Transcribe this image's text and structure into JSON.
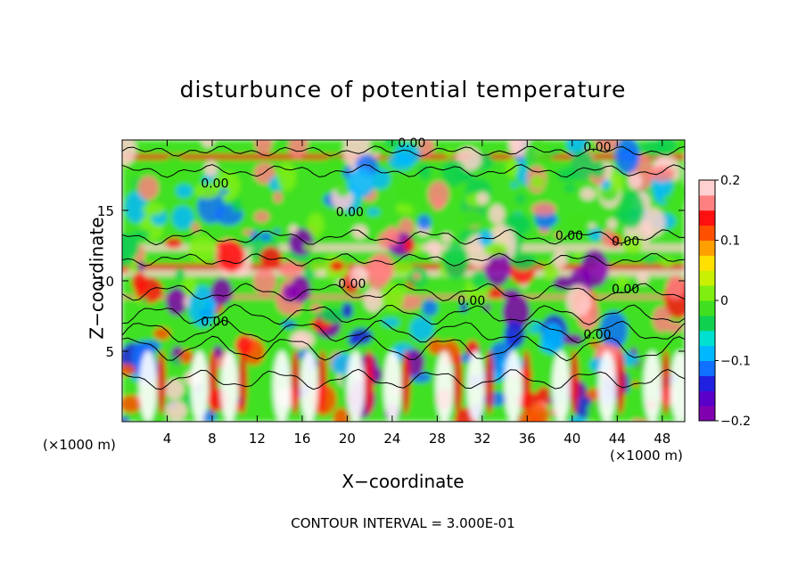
{
  "chart_data": {
    "type": "heatmap",
    "title": "disturbunce of potential temperature",
    "xlabel": "X−coordinate",
    "ylabel": "Z−coordinate",
    "x_unit": "(×1000 m)",
    "z_unit": "(×1000 m)",
    "x_ticks": [
      4,
      8,
      12,
      16,
      20,
      24,
      28,
      32,
      36,
      40,
      44,
      48
    ],
    "y_ticks": [
      5,
      10,
      15
    ],
    "xlim": [
      0,
      50
    ],
    "ylim": [
      0,
      20
    ],
    "colorbar": {
      "ticks": [
        "0.2",
        "0.1",
        "0",
        "−0.1",
        "−0.2"
      ],
      "range": [
        -0.2,
        0.2
      ],
      "colors": [
        "#8000b0",
        "#5a00c8",
        "#2020e0",
        "#1070ff",
        "#00b8ff",
        "#00e0d0",
        "#10d050",
        "#40e020",
        "#80ee10",
        "#c8f000",
        "#ffe000",
        "#ffa000",
        "#ff5000",
        "#ff1010",
        "#ff8080",
        "#ffd0d0"
      ]
    },
    "contour_labels": [
      "0.00",
      "0.00",
      "0.00",
      "0.00",
      "0.00",
      "0.00",
      "0.00",
      "0.00",
      "0.00",
      "0.00",
      "0.00"
    ],
    "contour_interval": "CONTOUR INTERVAL = 3.000E-01"
  }
}
